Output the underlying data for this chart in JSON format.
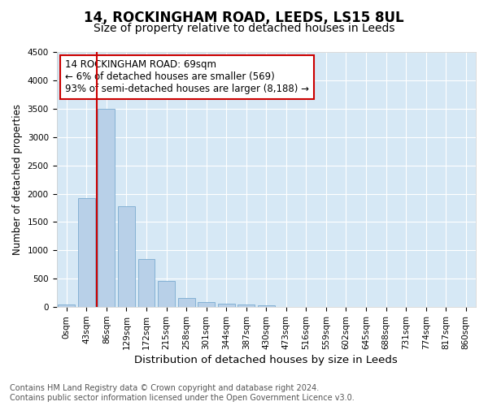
{
  "title1": "14, ROCKINGHAM ROAD, LEEDS, LS15 8UL",
  "title2": "Size of property relative to detached houses in Leeds",
  "xlabel": "Distribution of detached houses by size in Leeds",
  "ylabel": "Number of detached properties",
  "bar_labels": [
    "0sqm",
    "43sqm",
    "86sqm",
    "129sqm",
    "172sqm",
    "215sqm",
    "258sqm",
    "301sqm",
    "344sqm",
    "387sqm",
    "430sqm",
    "473sqm",
    "516sqm",
    "559sqm",
    "602sqm",
    "645sqm",
    "688sqm",
    "731sqm",
    "774sqm",
    "817sqm",
    "860sqm"
  ],
  "bar_values": [
    40,
    1920,
    3500,
    1780,
    850,
    455,
    165,
    95,
    65,
    50,
    30,
    0,
    0,
    0,
    0,
    0,
    0,
    0,
    0,
    0,
    0
  ],
  "bar_color": "#b8d0e8",
  "bar_edge_color": "#7aaad0",
  "vline_color": "#cc0000",
  "vline_position": 1.5,
  "annotation_line1": "14 ROCKINGHAM ROAD: 69sqm",
  "annotation_line2": "← 6% of detached houses are smaller (569)",
  "annotation_line3": "93% of semi-detached houses are larger (8,188) →",
  "annotation_box_color": "#ffffff",
  "annotation_box_edgecolor": "#cc0000",
  "ylim": [
    0,
    4500
  ],
  "yticks": [
    0,
    500,
    1000,
    1500,
    2000,
    2500,
    3000,
    3500,
    4000,
    4500
  ],
  "plot_bg_color": "#d6e8f5",
  "grid_color": "#ffffff",
  "footer_line1": "Contains HM Land Registry data © Crown copyright and database right 2024.",
  "footer_line2": "Contains public sector information licensed under the Open Government Licence v3.0.",
  "title1_fontsize": 12,
  "title2_fontsize": 10,
  "xlabel_fontsize": 9.5,
  "ylabel_fontsize": 8.5,
  "tick_fontsize": 7.5,
  "annotation_fontsize": 8.5,
  "footer_fontsize": 7
}
